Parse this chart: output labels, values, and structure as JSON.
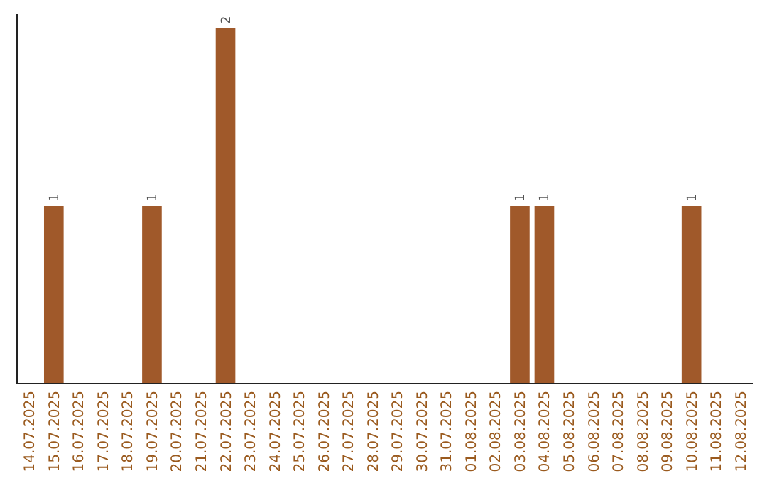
{
  "chart_data": {
    "type": "bar",
    "categories": [
      "14.07.2025",
      "15.07.2025",
      "16.07.2025",
      "17.07.2025",
      "18.07.2025",
      "19.07.2025",
      "20.07.2025",
      "21.07.2025",
      "22.07.2025",
      "23.07.2025",
      "24.07.2025",
      "25.07.2025",
      "26.07.2025",
      "27.07.2025",
      "28.07.2025",
      "29.07.2025",
      "30.07.2025",
      "31.07.2025",
      "01.08.2025",
      "02.08.2025",
      "03.08.2025",
      "04.08.2025",
      "05.08.2025",
      "06.08.2025",
      "07.08.2025",
      "08.08.2025",
      "09.08.2025",
      "10.08.2025",
      "11.08.2025",
      "12.08.2025"
    ],
    "values": [
      0,
      1,
      0,
      0,
      0,
      1,
      0,
      0,
      2,
      0,
      0,
      0,
      0,
      0,
      0,
      0,
      0,
      0,
      0,
      0,
      1,
      1,
      0,
      0,
      0,
      0,
      0,
      1,
      0,
      0
    ],
    "value_labels": [
      null,
      "1",
      null,
      null,
      null,
      "1",
      null,
      null,
      "2",
      null,
      null,
      null,
      null,
      null,
      null,
      null,
      null,
      null,
      null,
      null,
      "1",
      "1",
      null,
      null,
      null,
      null,
      null,
      "1",
      null,
      null
    ],
    "color": "#a0592a",
    "ylim": [
      0,
      2
    ],
    "tick_labels": "x"
  }
}
